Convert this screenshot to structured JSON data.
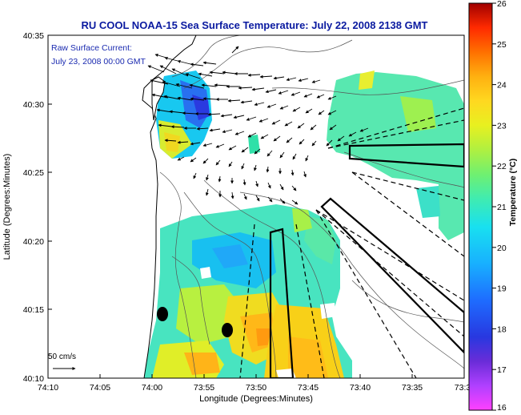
{
  "title": "RU COOL  NOAA-15  Sea Surface Temperature:  July 22, 2008 2138 GMT",
  "current_label": {
    "line1": "Raw Surface Current:",
    "line2": "July 23, 2008 00:00 GMT"
  },
  "scale_label": "50 cm/s",
  "axes": {
    "xlabel": "Longitude (Degrees:Minutes)",
    "ylabel": "Latitude (Degrees:Minutes)",
    "xticks": [
      "74:10",
      "74:05",
      "74:00",
      "73:55",
      "73:50",
      "73:45",
      "73:40",
      "73:35",
      "73:3"
    ],
    "yticks": [
      "40:35",
      "40:30",
      "40:25",
      "40:20",
      "40:15",
      "40:10"
    ]
  },
  "colorbar": {
    "label": "Temperature (°C)",
    "ticks": [
      "26",
      "25",
      "24",
      "23",
      "22",
      "21",
      "20",
      "19",
      "18",
      "17",
      "16"
    ],
    "min": 16,
    "max": 26
  },
  "colors": {
    "title": "#0a1aa0",
    "label_blue": "#1a2ab0"
  }
}
